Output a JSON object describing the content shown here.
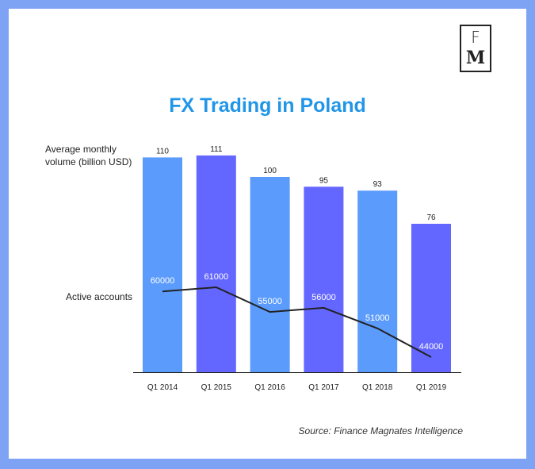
{
  "logo": {
    "letter_top": "F",
    "letter_bottom": "M"
  },
  "title": "FX Trading in Poland",
  "legend": {
    "volume": "Average monthly volume (billion USD)",
    "accounts": "Active accounts"
  },
  "source": "Source: Finance Magnates Intelligence",
  "colors": {
    "border": "#7fa3f4",
    "title": "#2196e8",
    "bar_light": "#5b9bfb",
    "bar_dark": "#6366ff",
    "line": "#222222",
    "line_label": "#ffffff"
  },
  "chart_data": {
    "type": "bar",
    "title": "FX Trading in Poland",
    "categories": [
      "Q1 2014",
      "Q1 2015",
      "Q1 2016",
      "Q1 2017",
      "Q1 2018",
      "Q1 2019"
    ],
    "series": [
      {
        "name": "Average monthly volume (billion USD)",
        "type": "bar",
        "values": [
          110,
          111,
          100,
          95,
          93,
          76
        ]
      },
      {
        "name": "Active accounts",
        "type": "line",
        "values": [
          60000,
          61000,
          55000,
          56000,
          51000,
          44000
        ]
      }
    ],
    "volume_range": [
      0,
      111
    ],
    "accounts_range": [
      44000,
      61000
    ],
    "grid": false
  }
}
